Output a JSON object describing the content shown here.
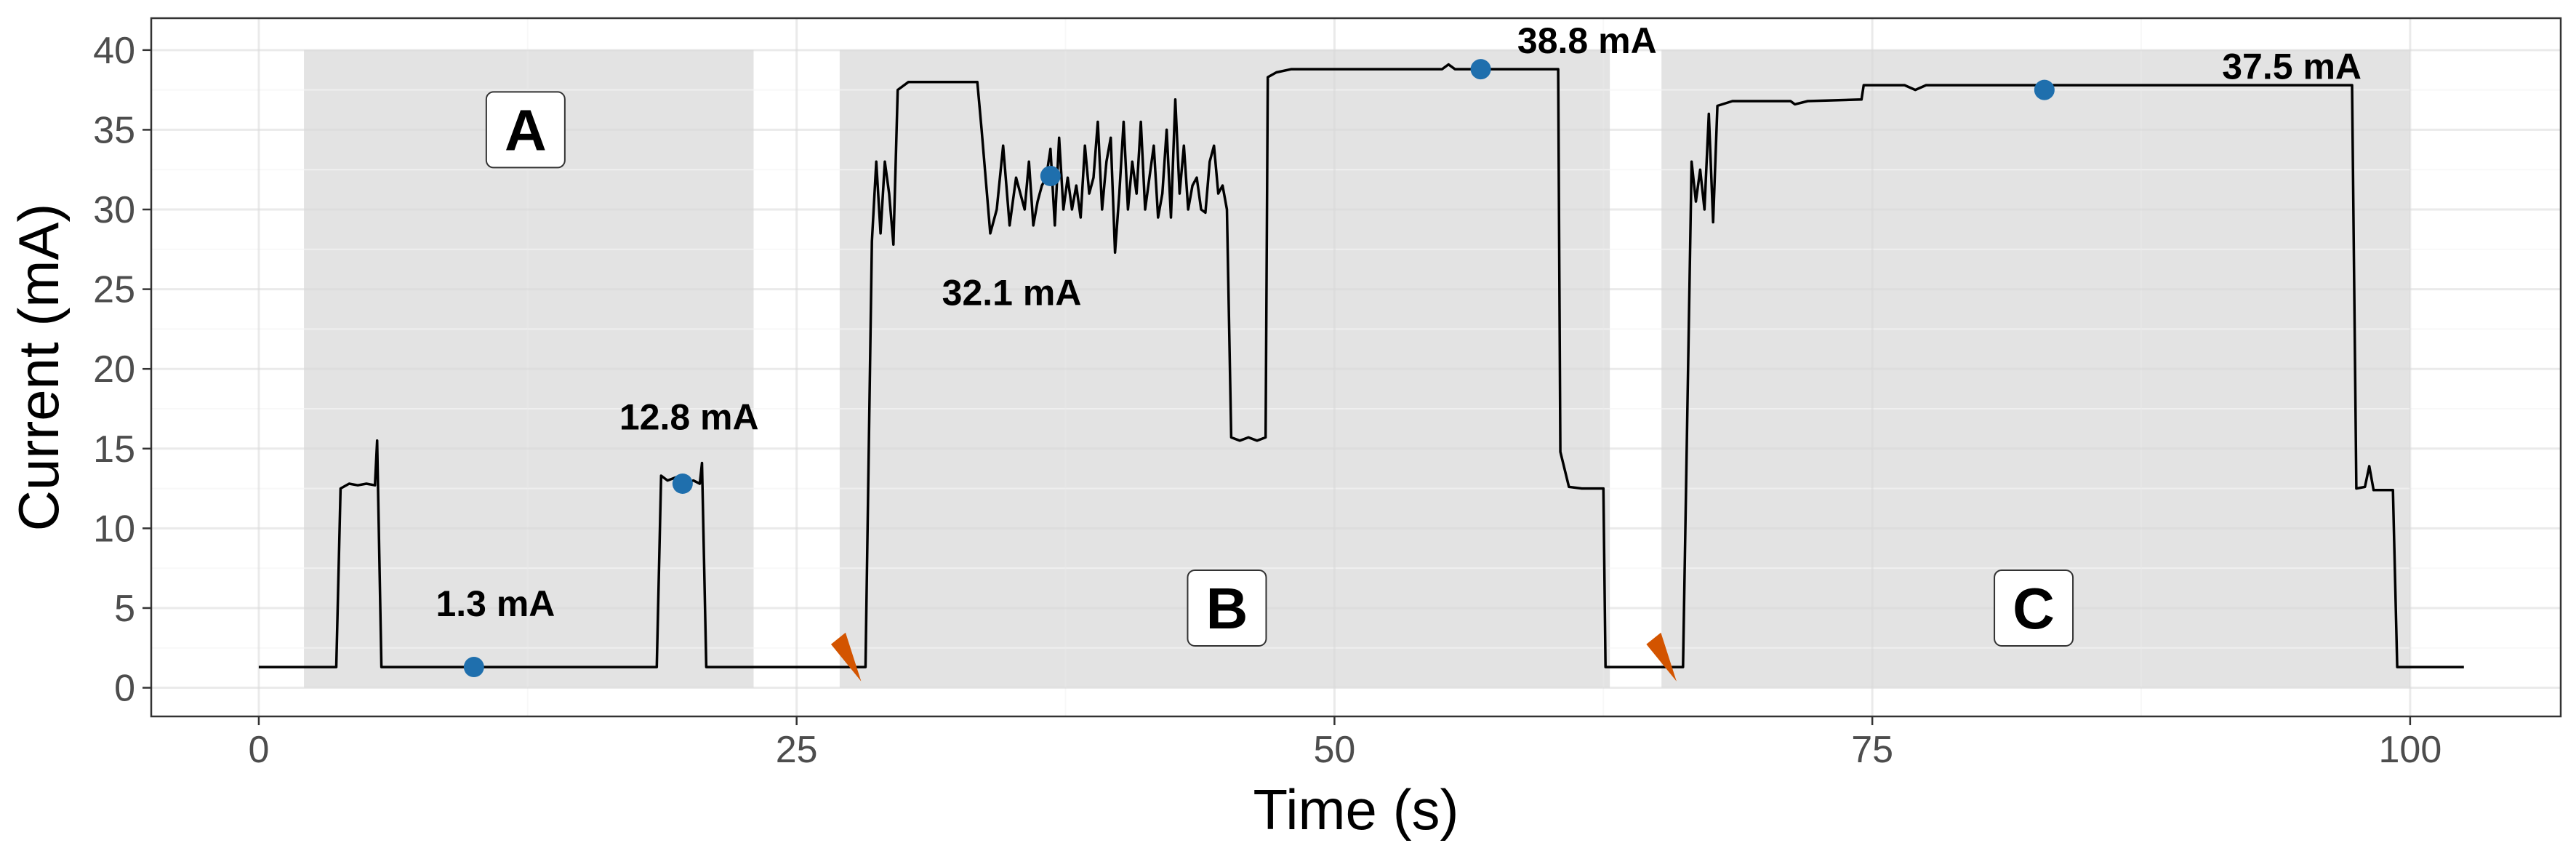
{
  "chart_data": {
    "type": "line",
    "title": "",
    "xlabel": "Time (s)",
    "ylabel": "Current (mA)",
    "xlim": [
      -5,
      107
    ],
    "ylim": [
      -1.8,
      42
    ],
    "xticks": [
      0,
      25,
      50,
      75,
      100
    ],
    "yticks": [
      0,
      5,
      10,
      15,
      20,
      25,
      30,
      35,
      40
    ],
    "grid": true,
    "legend": "none",
    "colors": {
      "line": "#000000",
      "point": "#1f6fad",
      "marker": "#d35400",
      "shade": "#e3e3e3"
    },
    "shaded_regions": [
      {
        "label": "A",
        "x": [
          2.1,
          23
        ],
        "label_pos": [
          12.4,
          35
        ]
      },
      {
        "label": "B",
        "x": [
          27,
          62.8
        ],
        "label_pos": [
          45,
          5
        ]
      },
      {
        "label": "C",
        "x": [
          65.2,
          100
        ],
        "label_pos": [
          82.5,
          5
        ]
      }
    ],
    "series": [
      {
        "points": [
          [
            0,
            1.3
          ],
          [
            3.6,
            1.3
          ],
          [
            3.8,
            12.5
          ],
          [
            4.2,
            12.8
          ],
          [
            4.6,
            12.7
          ],
          [
            5.0,
            12.8
          ],
          [
            5.4,
            12.7
          ],
          [
            5.5,
            15.5
          ],
          [
            5.7,
            1.3
          ],
          [
            18.5,
            1.3
          ],
          [
            18.7,
            13.3
          ],
          [
            19.0,
            13.0
          ],
          [
            19.4,
            13.2
          ],
          [
            19.8,
            12.8
          ],
          [
            20.2,
            13.0
          ],
          [
            20.5,
            12.8
          ],
          [
            20.6,
            14.1
          ],
          [
            20.8,
            1.3
          ],
          [
            28.2,
            1.3
          ],
          [
            28.5,
            28
          ],
          [
            28.7,
            33
          ],
          [
            28.9,
            28.5
          ],
          [
            29.1,
            33
          ],
          [
            29.3,
            31
          ],
          [
            29.5,
            27.8
          ],
          [
            29.7,
            37.5
          ],
          [
            30.2,
            38
          ],
          [
            31,
            38
          ],
          [
            33,
            38
          ],
          [
            33.4,
            38
          ],
          [
            33.6,
            35
          ],
          [
            34.0,
            28.5
          ],
          [
            34.3,
            30
          ],
          [
            34.6,
            34
          ],
          [
            34.9,
            29
          ],
          [
            35.2,
            32
          ],
          [
            35.4,
            31
          ],
          [
            35.6,
            30
          ],
          [
            35.8,
            33
          ],
          [
            36.0,
            29
          ],
          [
            36.2,
            30.5
          ],
          [
            36.4,
            31.5
          ],
          [
            36.6,
            32
          ],
          [
            36.8,
            33.8
          ],
          [
            37.0,
            29
          ],
          [
            37.2,
            34.5
          ],
          [
            37.4,
            30
          ],
          [
            37.6,
            32
          ],
          [
            37.8,
            30
          ],
          [
            38.0,
            31.5
          ],
          [
            38.2,
            29.5
          ],
          [
            38.4,
            34
          ],
          [
            38.6,
            31
          ],
          [
            38.8,
            32
          ],
          [
            39.0,
            35.5
          ],
          [
            39.2,
            30
          ],
          [
            39.4,
            33
          ],
          [
            39.6,
            34.5
          ],
          [
            39.8,
            27.3
          ],
          [
            40.0,
            31
          ],
          [
            40.2,
            35.5
          ],
          [
            40.4,
            30
          ],
          [
            40.6,
            33
          ],
          [
            40.8,
            31
          ],
          [
            41.0,
            35.5
          ],
          [
            41.2,
            30
          ],
          [
            41.4,
            32
          ],
          [
            41.6,
            34
          ],
          [
            41.8,
            29.5
          ],
          [
            42.0,
            31
          ],
          [
            42.2,
            35
          ],
          [
            42.4,
            29.5
          ],
          [
            42.6,
            36.9
          ],
          [
            42.8,
            31
          ],
          [
            43.0,
            34
          ],
          [
            43.2,
            30
          ],
          [
            43.4,
            31.5
          ],
          [
            43.6,
            32
          ],
          [
            43.8,
            30
          ],
          [
            44.0,
            29.8
          ],
          [
            44.2,
            33
          ],
          [
            44.4,
            34
          ],
          [
            44.6,
            31
          ],
          [
            44.8,
            31.5
          ],
          [
            45.0,
            30
          ],
          [
            45.2,
            15.7
          ],
          [
            45.6,
            15.5
          ],
          [
            46,
            15.7
          ],
          [
            46.4,
            15.5
          ],
          [
            46.8,
            15.7
          ],
          [
            46.9,
            38.3
          ],
          [
            47.3,
            38.6
          ],
          [
            48.0,
            38.8
          ],
          [
            52,
            38.8
          ],
          [
            55,
            38.8
          ],
          [
            55.3,
            39.1
          ],
          [
            55.6,
            38.8
          ],
          [
            60,
            38.8
          ],
          [
            60.4,
            38.8
          ],
          [
            60.5,
            14.8
          ],
          [
            60.9,
            12.6
          ],
          [
            61.5,
            12.5
          ],
          [
            62.2,
            12.5
          ],
          [
            62.5,
            12.5
          ],
          [
            62.6,
            1.3
          ],
          [
            66.2,
            1.3
          ],
          [
            66.6,
            33
          ],
          [
            66.8,
            30.5
          ],
          [
            67.0,
            32.5
          ],
          [
            67.2,
            30
          ],
          [
            67.4,
            36
          ],
          [
            67.6,
            29.2
          ],
          [
            67.8,
            36.5
          ],
          [
            68.5,
            36.8
          ],
          [
            70,
            36.8
          ],
          [
            71.2,
            36.8
          ],
          [
            71.4,
            36.6
          ],
          [
            72,
            36.8
          ],
          [
            74.5,
            36.9
          ],
          [
            74.6,
            37.8
          ],
          [
            76.5,
            37.8
          ],
          [
            77,
            37.5
          ],
          [
            77.5,
            37.8
          ],
          [
            85,
            37.8
          ],
          [
            95,
            37.8
          ],
          [
            97.3,
            37.8
          ],
          [
            97.5,
            12.5
          ],
          [
            97.9,
            12.6
          ],
          [
            98.1,
            13.9
          ],
          [
            98.3,
            12.4
          ],
          [
            99.2,
            12.4
          ],
          [
            99.4,
            1.3
          ],
          [
            102.5,
            1.3
          ]
        ]
      }
    ],
    "highlight_points": [
      [
        10,
        1.3
      ],
      [
        19.7,
        12.8
      ],
      [
        36.8,
        32.1
      ],
      [
        56.8,
        38.8
      ],
      [
        83,
        37.5
      ]
    ],
    "annotations": [
      {
        "text": "1.3 mA",
        "x": 11,
        "y": 4.5,
        "anchor": "middle"
      },
      {
        "text": "12.8 mA",
        "x": 20,
        "y": 16.2,
        "anchor": "middle"
      },
      {
        "text": "32.1 mA",
        "x": 35,
        "y": 24,
        "anchor": "middle"
      },
      {
        "text": "38.8 mA",
        "x": 58.5,
        "y": 39.8,
        "anchor": "start"
      },
      {
        "text": "37.5 mA",
        "x": 94.5,
        "y": 38.2,
        "anchor": "middle"
      }
    ],
    "event_markers": [
      [
        26.8,
        3.0
      ],
      [
        64.7,
        3.0
      ]
    ]
  }
}
